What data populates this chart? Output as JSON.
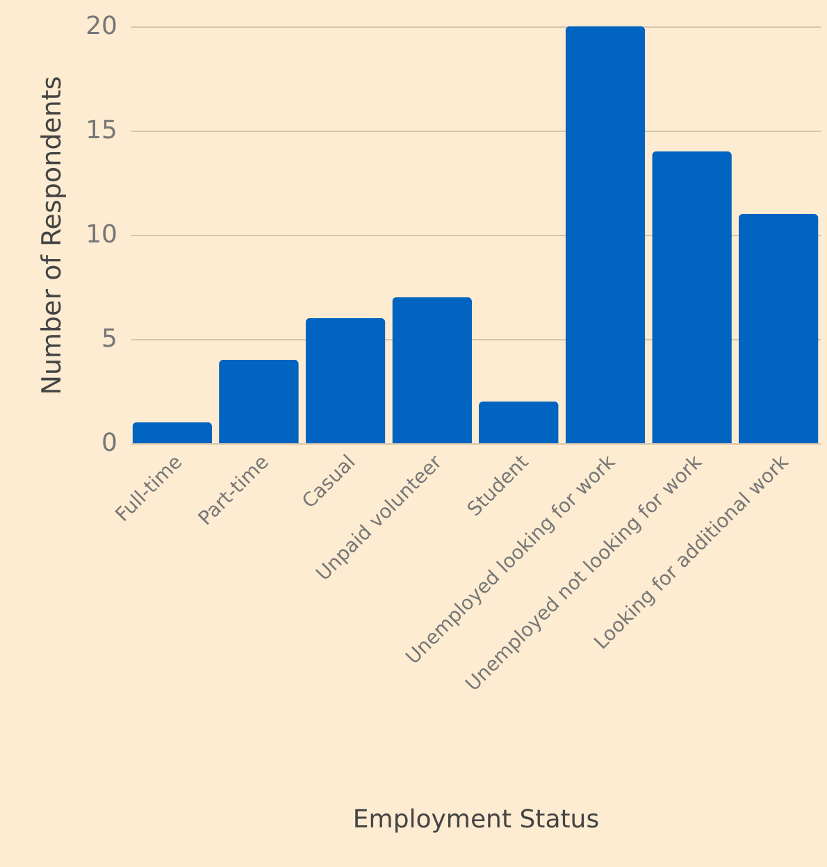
{
  "chart_data": {
    "type": "bar",
    "xlabel": "Employment Status",
    "ylabel": "Number of Respondents",
    "categories": [
      "Full-time",
      "Part-time",
      "Casual",
      "Unpaid volunteer",
      "Student",
      "Unemployed looking for work",
      "Unemployed not looking for work",
      "Looking for additional work"
    ],
    "values": [
      1,
      4,
      6,
      7,
      2,
      20,
      14,
      11
    ],
    "color": "#0064c0",
    "ylim": [
      0,
      20
    ],
    "yticks": [
      0,
      5,
      10,
      15,
      20
    ],
    "grid": "y"
  }
}
